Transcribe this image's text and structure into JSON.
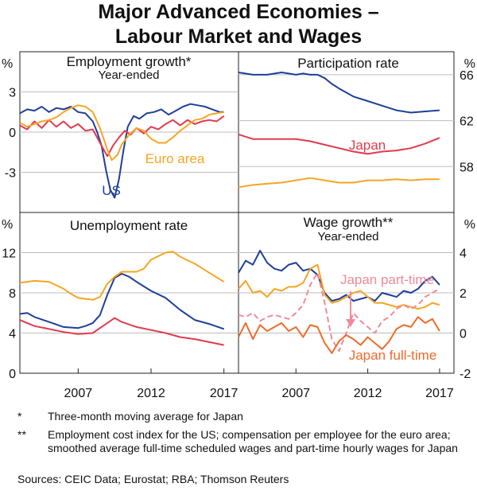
{
  "title": {
    "line1": "Major Advanced Economies –",
    "line2": "Labour Market and Wages"
  },
  "colors": {
    "us": "#1f3f99",
    "japan": "#e23a4e",
    "euro_area": "#f5a623",
    "japan_part_time": "#f08a9a",
    "japan_full_time": "#ef6a2a",
    "annotation_us": "#1f3f99",
    "annotation_japan": "#e23a4e",
    "annotation_euro": "#f5a623",
    "annotation_pt": "#f08a9a",
    "annotation_ft": "#ef6a2a"
  },
  "chart_data": [
    {
      "panel": "top-left",
      "type": "line",
      "title": "Employment growth*",
      "subtitle": "Year-ended",
      "unit_label": "%",
      "axis_side": "left",
      "ylim": [
        -6,
        6
      ],
      "yticks": [
        3,
        0,
        -3
      ],
      "ytick_labels": [
        "3",
        "0",
        "-3"
      ],
      "xlim": [
        2003,
        2018
      ],
      "annotations": [
        {
          "text": "Euro area",
          "series": "Euro area"
        },
        {
          "text": "US",
          "series": "US"
        }
      ],
      "series": [
        {
          "name": "US",
          "color_key": "us",
          "x": [
            2003.0,
            2003.5,
            2004.0,
            2004.5,
            2005.0,
            2005.5,
            2006.0,
            2006.5,
            2007.0,
            2007.5,
            2008.0,
            2008.3,
            2008.6,
            2008.9,
            2009.2,
            2009.5,
            2009.8,
            2010.1,
            2010.4,
            2010.8,
            2011.2,
            2011.7,
            2012.2,
            2012.7,
            2013.2,
            2013.7,
            2014.2,
            2014.7,
            2015.2,
            2015.7,
            2016.2,
            2016.7,
            2017.0
          ],
          "values": [
            1.4,
            1.7,
            1.6,
            1.9,
            1.5,
            1.8,
            1.7,
            1.9,
            1.5,
            1.4,
            0.8,
            0.0,
            -1.0,
            -2.8,
            -4.3,
            -4.9,
            -3.5,
            -1.4,
            0.4,
            1.2,
            1.0,
            1.4,
            1.5,
            1.7,
            1.3,
            1.6,
            1.9,
            2.1,
            2.0,
            1.9,
            1.7,
            1.5,
            1.5
          ]
        },
        {
          "name": "Japan",
          "color_key": "japan",
          "x": [
            2003.0,
            2003.5,
            2004.0,
            2004.5,
            2005.0,
            2005.5,
            2006.0,
            2006.5,
            2007.0,
            2007.5,
            2008.0,
            2008.5,
            2009.0,
            2009.4,
            2009.8,
            2010.2,
            2010.6,
            2011.0,
            2011.5,
            2012.0,
            2012.5,
            2013.0,
            2013.5,
            2014.0,
            2014.5,
            2015.0,
            2015.5,
            2016.0,
            2016.5,
            2017.0
          ],
          "values": [
            0.5,
            0.2,
            0.8,
            0.3,
            0.9,
            0.4,
            0.8,
            0.3,
            0.6,
            0.1,
            0.2,
            -0.8,
            -1.8,
            -1.0,
            -0.4,
            0.1,
            -0.2,
            0.3,
            -0.1,
            0.4,
            0.2,
            0.6,
            0.9,
            0.5,
            0.9,
            0.6,
            0.8,
            0.9,
            0.8,
            1.2
          ]
        },
        {
          "name": "Euro area",
          "color_key": "euro_area",
          "x": [
            2003.0,
            2003.5,
            2004.0,
            2004.5,
            2005.0,
            2005.5,
            2006.0,
            2006.5,
            2007.0,
            2007.5,
            2008.0,
            2008.5,
            2009.0,
            2009.3,
            2009.7,
            2010.0,
            2010.5,
            2011.0,
            2011.5,
            2012.0,
            2012.5,
            2013.0,
            2013.5,
            2014.0,
            2014.5,
            2015.0,
            2015.5,
            2016.0,
            2016.5,
            2017.0
          ],
          "values": [
            0.7,
            0.4,
            0.6,
            0.8,
            0.9,
            1.1,
            1.5,
            1.8,
            2.0,
            1.9,
            1.5,
            0.3,
            -1.3,
            -2.1,
            -1.7,
            -0.9,
            -0.2,
            0.3,
            0.1,
            -0.5,
            -0.8,
            -0.8,
            -0.4,
            0.1,
            0.5,
            0.9,
            1.0,
            1.3,
            1.4,
            1.5
          ]
        }
      ]
    },
    {
      "panel": "top-right",
      "type": "line",
      "title": "Participation rate",
      "unit_label": "%",
      "axis_side": "right",
      "ylim": [
        54,
        68
      ],
      "yticks": [
        66,
        62,
        58
      ],
      "ytick_labels": [
        "66",
        "62",
        "58"
      ],
      "xlim": [
        2003,
        2018
      ],
      "annotations": [
        {
          "text": "Japan",
          "series": "Japan"
        }
      ],
      "series": [
        {
          "name": "US",
          "color_key": "us",
          "x": [
            2003.0,
            2004.0,
            2005.0,
            2006.0,
            2007.0,
            2007.5,
            2008.0,
            2008.5,
            2009.0,
            2009.5,
            2010.0,
            2011.0,
            2012.0,
            2013.0,
            2014.0,
            2015.0,
            2016.0,
            2017.0
          ],
          "values": [
            66.2,
            66.0,
            66.0,
            66.2,
            66.0,
            66.1,
            66.0,
            66.0,
            65.7,
            65.2,
            64.8,
            64.1,
            63.7,
            63.3,
            62.9,
            62.7,
            62.8,
            62.9
          ]
        },
        {
          "name": "Japan",
          "color_key": "japan",
          "x": [
            2003.0,
            2004.0,
            2005.0,
            2006.0,
            2007.0,
            2008.0,
            2009.0,
            2010.0,
            2011.0,
            2012.0,
            2013.0,
            2014.0,
            2015.0,
            2016.0,
            2017.0
          ],
          "values": [
            60.8,
            60.4,
            60.4,
            60.4,
            60.4,
            60.2,
            59.9,
            59.6,
            59.3,
            59.1,
            59.3,
            59.4,
            59.6,
            60.0,
            60.5
          ]
        },
        {
          "name": "Euro area",
          "color_key": "euro_area",
          "x": [
            2003.0,
            2004.0,
            2005.0,
            2006.0,
            2007.0,
            2008.0,
            2009.0,
            2010.0,
            2011.0,
            2012.0,
            2013.0,
            2014.0,
            2015.0,
            2016.0,
            2017.0
          ],
          "values": [
            56.2,
            56.4,
            56.5,
            56.6,
            56.8,
            57.0,
            56.8,
            56.6,
            56.6,
            56.8,
            56.8,
            56.9,
            56.8,
            56.9,
            56.9
          ]
        }
      ]
    },
    {
      "panel": "bottom-left",
      "type": "line",
      "title": "Unemployment rate",
      "unit_label": "%",
      "axis_side": "left",
      "ylim": [
        0,
        16
      ],
      "yticks": [
        12,
        8,
        4,
        0
      ],
      "ytick_labels": [
        "12",
        "8",
        "4",
        "0"
      ],
      "xlim": [
        2003,
        2018
      ],
      "xticks": [
        2007,
        2012,
        2017
      ],
      "xtick_labels": [
        "2007",
        "2012",
        "2017"
      ],
      "series": [
        {
          "name": "US",
          "color_key": "us",
          "x": [
            2003.0,
            2003.5,
            2004.0,
            2005.0,
            2006.0,
            2007.0,
            2007.5,
            2008.0,
            2008.5,
            2009.0,
            2009.5,
            2010.0,
            2010.5,
            2011.0,
            2012.0,
            2013.0,
            2014.0,
            2015.0,
            2016.0,
            2017.0
          ],
          "values": [
            5.9,
            6.0,
            5.6,
            5.1,
            4.6,
            4.5,
            4.7,
            5.0,
            5.8,
            7.8,
            9.5,
            9.9,
            9.6,
            9.1,
            8.2,
            7.5,
            6.3,
            5.3,
            4.9,
            4.4
          ]
        },
        {
          "name": "Japan",
          "color_key": "japan",
          "x": [
            2003.0,
            2004.0,
            2005.0,
            2006.0,
            2007.0,
            2008.0,
            2009.0,
            2009.5,
            2010.0,
            2011.0,
            2012.0,
            2013.0,
            2014.0,
            2015.0,
            2016.0,
            2017.0
          ],
          "values": [
            5.3,
            4.7,
            4.4,
            4.1,
            3.9,
            4.0,
            5.0,
            5.5,
            5.1,
            4.6,
            4.3,
            4.0,
            3.6,
            3.4,
            3.1,
            2.8
          ]
        },
        {
          "name": "Euro area",
          "color_key": "euro_area",
          "x": [
            2003.0,
            2004.0,
            2005.0,
            2006.0,
            2006.5,
            2007.0,
            2008.0,
            2008.5,
            2009.0,
            2009.5,
            2010.0,
            2011.0,
            2011.5,
            2012.0,
            2013.0,
            2013.5,
            2014.0,
            2015.0,
            2016.0,
            2017.0
          ],
          "values": [
            9.0,
            9.2,
            9.1,
            8.4,
            7.9,
            7.5,
            7.3,
            7.6,
            8.9,
            9.6,
            10.1,
            10.1,
            10.4,
            11.3,
            12.0,
            12.1,
            11.6,
            10.9,
            10.0,
            9.1
          ]
        }
      ]
    },
    {
      "panel": "bottom-right",
      "type": "line",
      "title": "Wage growth**",
      "subtitle": "Year-ended",
      "unit_label": "%",
      "axis_side": "right",
      "ylim": [
        -2,
        6
      ],
      "yticks": [
        4,
        2,
        0,
        -2
      ],
      "ytick_labels": [
        "4",
        "2",
        "0",
        "-2"
      ],
      "xlim": [
        2003,
        2018
      ],
      "xticks": [
        2007,
        2012,
        2017
      ],
      "xtick_labels": [
        "2007",
        "2012",
        "2017"
      ],
      "annotations": [
        {
          "text": "Japan part-time",
          "series": "Japan part-time"
        },
        {
          "text": "Japan full-time",
          "series": "Japan full-time"
        }
      ],
      "series": [
        {
          "name": "US",
          "color_key": "us",
          "x": [
            2003.0,
            2003.5,
            2004.0,
            2004.5,
            2005.0,
            2005.5,
            2006.0,
            2006.5,
            2007.0,
            2007.5,
            2008.0,
            2008.5,
            2009.0,
            2009.5,
            2010.0,
            2010.5,
            2011.0,
            2011.5,
            2012.0,
            2012.5,
            2013.0,
            2013.5,
            2014.0,
            2014.5,
            2015.0,
            2015.5,
            2016.0,
            2016.5,
            2017.0
          ],
          "values": [
            3.0,
            3.6,
            3.4,
            4.1,
            3.5,
            3.2,
            3.1,
            3.4,
            3.5,
            3.1,
            3.2,
            2.9,
            2.0,
            1.6,
            1.7,
            1.9,
            1.6,
            1.7,
            1.8,
            1.6,
            2.0,
            1.9,
            1.8,
            2.1,
            2.0,
            2.2,
            2.6,
            2.8,
            2.4
          ]
        },
        {
          "name": "Euro area",
          "color_key": "euro_area",
          "x": [
            2003.0,
            2003.5,
            2004.0,
            2004.5,
            2005.0,
            2005.5,
            2006.0,
            2006.5,
            2007.0,
            2007.5,
            2008.0,
            2008.5,
            2009.0,
            2009.5,
            2010.0,
            2010.5,
            2011.0,
            2011.5,
            2012.0,
            2012.5,
            2013.0,
            2013.5,
            2014.0,
            2014.5,
            2015.0,
            2015.5,
            2016.0,
            2016.5,
            2017.0
          ],
          "values": [
            2.2,
            2.6,
            2.0,
            2.1,
            1.8,
            2.2,
            2.1,
            2.3,
            2.3,
            2.5,
            3.2,
            3.4,
            1.9,
            1.5,
            1.6,
            1.8,
            2.0,
            2.1,
            1.8,
            1.5,
            1.5,
            1.4,
            1.3,
            1.4,
            1.3,
            1.2,
            1.3,
            1.5,
            1.4
          ]
        },
        {
          "name": "Japan part-time",
          "color_key": "japan_part_time",
          "dashed": true,
          "x": [
            2003.0,
            2003.5,
            2004.0,
            2004.5,
            2005.0,
            2005.5,
            2006.0,
            2006.5,
            2007.0,
            2007.5,
            2008.0,
            2008.5,
            2009.0,
            2009.5,
            2010.0,
            2010.5,
            2011.0,
            2011.5,
            2012.0,
            2012.5,
            2013.0,
            2013.5,
            2014.0,
            2014.5,
            2015.0,
            2015.5,
            2016.0,
            2016.5,
            2017.0
          ],
          "values": [
            0.9,
            0.8,
            1.0,
            0.6,
            0.8,
            0.9,
            0.8,
            0.7,
            1.0,
            1.4,
            2.4,
            3.0,
            1.5,
            -0.3,
            -0.9,
            0.0,
            1.0,
            0.6,
            0.3,
            0.0,
            0.6,
            0.8,
            1.2,
            1.4,
            1.2,
            1.4,
            1.8,
            2.0,
            2.2
          ]
        },
        {
          "name": "Japan full-time",
          "color_key": "japan_full_time",
          "x": [
            2003.0,
            2003.5,
            2004.0,
            2004.5,
            2005.0,
            2005.5,
            2006.0,
            2006.5,
            2007.0,
            2007.5,
            2008.0,
            2008.5,
            2009.0,
            2009.5,
            2010.0,
            2010.5,
            2011.0,
            2011.5,
            2012.0,
            2012.5,
            2013.0,
            2013.5,
            2014.0,
            2014.5,
            2015.0,
            2015.5,
            2016.0,
            2016.5,
            2017.0
          ],
          "values": [
            -0.2,
            0.5,
            -0.3,
            0.4,
            0.1,
            0.3,
            0.5,
            0.1,
            0.3,
            -0.2,
            0.4,
            0.3,
            -0.5,
            -1.0,
            -0.4,
            -0.1,
            -0.3,
            -0.6,
            -0.2,
            -0.5,
            -0.8,
            -0.4,
            0.2,
            0.4,
            0.3,
            0.8,
            0.5,
            0.7,
            0.1
          ]
        }
      ]
    }
  ],
  "notes": [
    {
      "mark": "*",
      "text": "Three-month moving average for Japan"
    },
    {
      "mark": "**",
      "text": "Employment cost index for the US; compensation per employee for the euro area; smoothed average full-time scheduled wages and part-time hourly wages for Japan"
    }
  ],
  "sources": "Sources: CEIC Data; Eurostat; RBA; Thomson Reuters"
}
